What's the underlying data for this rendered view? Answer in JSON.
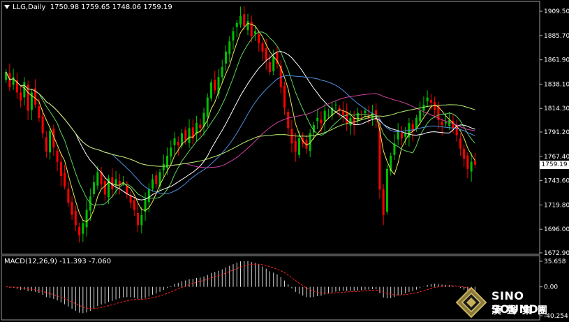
{
  "header": {
    "symbol": "LLG,Daily",
    "ohlc": "1750.98 1759.65 1748.06 1759.19"
  },
  "macd_header": {
    "label": "MACD(12,26,9) -11.393 -7.060"
  },
  "logo": {
    "brand": "SINO SOUND",
    "brand_cn": "漢聲集團"
  },
  "colors": {
    "background": "#000000",
    "bull": "#00c000",
    "bear": "#ff0000",
    "ma_yellow": "#e8e858",
    "ma_green": "#5fd35f",
    "ma_white": "#ffffff",
    "ma_blue": "#4f8fe0",
    "ma_pink": "#d040a0",
    "ma_lightgreen": "#b8f070",
    "macd_hist": "#d8d8d8",
    "macd_signal": "#ff2020"
  },
  "chart_data": {
    "type": "candlestick",
    "instrument": "LLG",
    "timeframe": "Daily",
    "last_price": "1759.19",
    "y_ticks": [
      "1909.50",
      "1885.70",
      "1861.90",
      "1838.10",
      "1814.30",
      "1791.20",
      "1767.40",
      "1743.60",
      "1719.80",
      "1696.00",
      "1672.90"
    ],
    "ylim": [
      1672.9,
      1915
    ],
    "close_series": [
      1850,
      1835,
      1845,
      1830,
      1822,
      1840,
      1812,
      1830,
      1818,
      1805,
      1790,
      1772,
      1792,
      1776,
      1762,
      1748,
      1738,
      1722,
      1710,
      1700,
      1690,
      1702,
      1715,
      1728,
      1742,
      1752,
      1740,
      1730,
      1746,
      1735,
      1745,
      1740,
      1742,
      1730,
      1722,
      1715,
      1700,
      1710,
      1725,
      1735,
      1745,
      1740,
      1752,
      1760,
      1768,
      1776,
      1785,
      1778,
      1790,
      1783,
      1795,
      1785,
      1800,
      1795,
      1810,
      1825,
      1840,
      1832,
      1845,
      1855,
      1870,
      1880,
      1890,
      1898,
      1905,
      1895,
      1900,
      1885,
      1890,
      1878,
      1870,
      1862,
      1850,
      1865,
      1858,
      1835,
      1815,
      1795,
      1780,
      1772,
      1785,
      1780,
      1775,
      1790,
      1798,
      1805,
      1800,
      1812,
      1808,
      1815,
      1818,
      1812,
      1808,
      1800,
      1805,
      1798,
      1810,
      1808,
      1812,
      1805,
      1810,
      1803,
      1735,
      1710,
      1755,
      1768,
      1780,
      1792,
      1785,
      1790,
      1800,
      1792,
      1805,
      1812,
      1818,
      1825,
      1820,
      1813,
      1803,
      1798,
      1801,
      1803,
      1795,
      1788,
      1775,
      1765,
      1755,
      1762,
      1759.19
    ],
    "ma_periods_style": [
      {
        "color": "yellow",
        "kind": "fast"
      },
      {
        "color": "green",
        "kind": "medium"
      },
      {
        "color": "white",
        "kind": "slow"
      },
      {
        "color": "blue",
        "kind": "slower"
      },
      {
        "color": "pink",
        "kind": "long"
      },
      {
        "color": "lightgreen",
        "kind": "longest"
      }
    ],
    "macd": {
      "label": "MACD(12,26,9)",
      "macd_value": "-11.393",
      "signal_value": "-7.060",
      "y_ticks": [
        "35.658",
        "0.00",
        "-40.254"
      ],
      "ylim": [
        -40.254,
        35.658
      ]
    }
  }
}
